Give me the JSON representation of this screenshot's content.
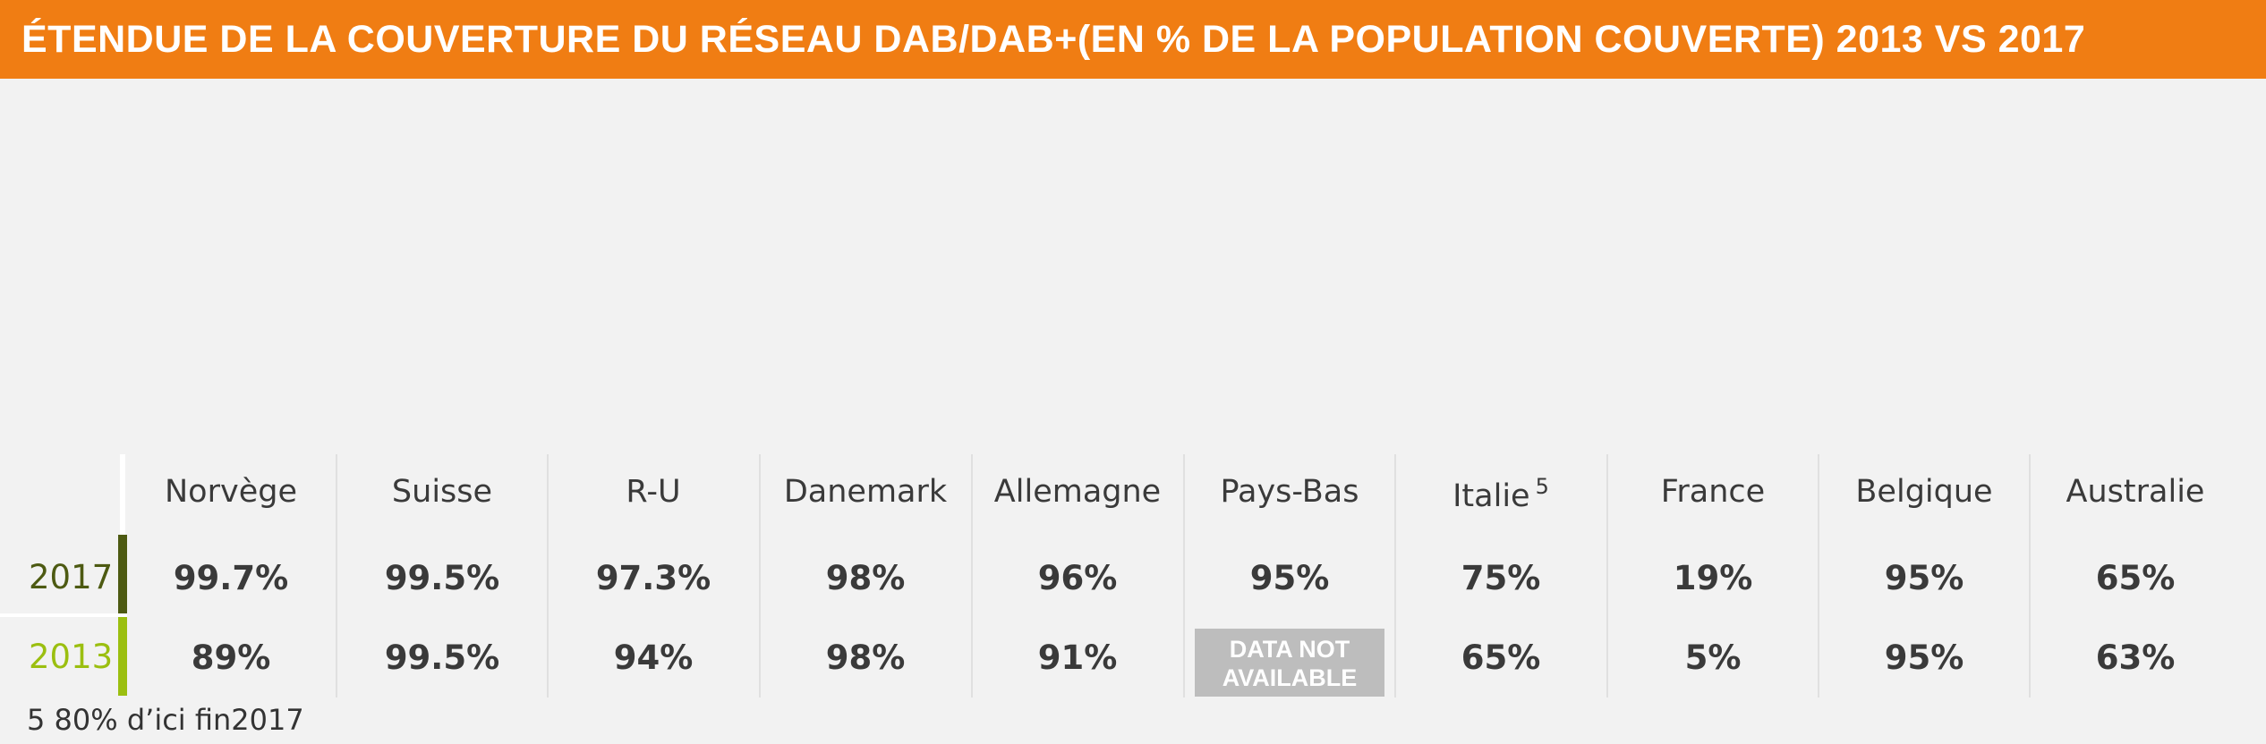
{
  "title": "ÉTENDUE DE LA COUVERTURE DU RÉSEAU DAB/DAB+(EN % DE LA POPULATION COUVERTE) 2013 VS 2017",
  "row_labels": {
    "y2017": "2017",
    "y2013": "2013"
  },
  "footnote": "5 80% d’ici fin2017",
  "colors": {
    "c2017": "#4d5a12",
    "c2013": "#9bbf10",
    "empty": "#bdbdbd",
    "header": "#f07d13"
  },
  "chart_data": {
    "type": "bar",
    "categories": [
      "Norvège",
      "Suisse",
      "R-U",
      "Danemark",
      "Allemagne",
      "Pays-Bas",
      "Italie",
      "France",
      "Belgique",
      "Australie"
    ],
    "category_superscripts": [
      "",
      "",
      "",
      "",
      "",
      "",
      "5",
      "",
      "",
      ""
    ],
    "series": [
      {
        "name": "2017",
        "values": [
          99.7,
          99.5,
          97.3,
          98,
          96,
          95,
          75,
          19,
          95,
          65
        ],
        "labels": [
          "99.7%",
          "99.5%",
          "97.3%",
          "98%",
          "96%",
          "95%",
          "75%",
          "19%",
          "95%",
          "65%"
        ]
      },
      {
        "name": "2013",
        "values": [
          89,
          99.5,
          94,
          98,
          91,
          null,
          65,
          5,
          95,
          63
        ],
        "labels": [
          "89%",
          "99.5%",
          "94%",
          "98%",
          "91%",
          "DATA NOT AVAILABLE",
          "65%",
          "5%",
          "95%",
          "63%"
        ]
      }
    ],
    "ylim": [
      0,
      100
    ]
  }
}
